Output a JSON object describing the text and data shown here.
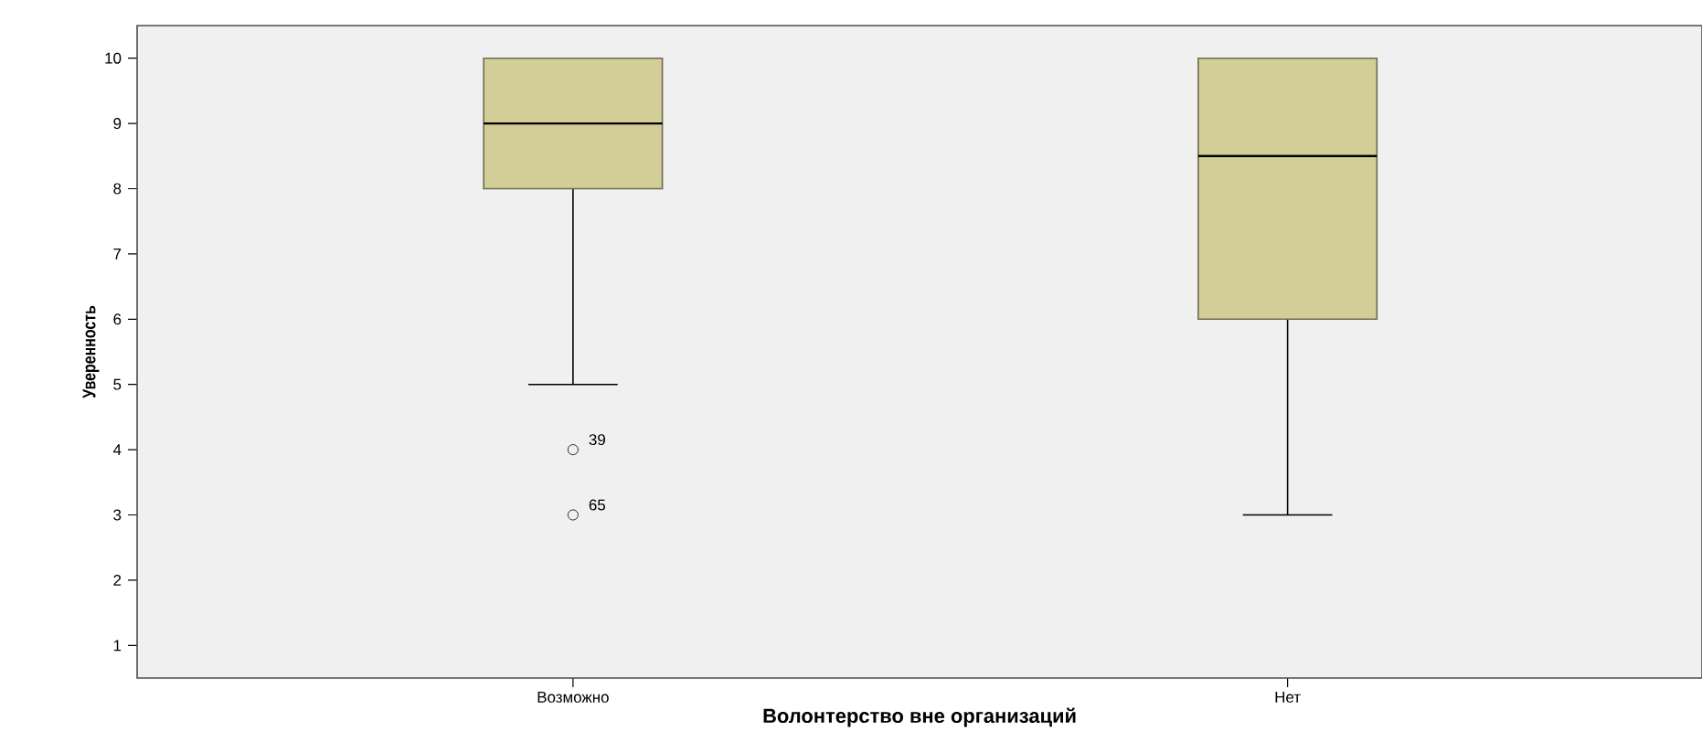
{
  "chart_data": {
    "type": "box",
    "xlabel": "Волонтерство вне организаций",
    "ylabel": "Уверенность",
    "categories": [
      "Возможно",
      "Нет"
    ],
    "boxes": [
      {
        "low": 5,
        "q1": 8,
        "median": 9,
        "q3": 10,
        "high": 10,
        "outliers": [
          4,
          3
        ]
      },
      {
        "low": 3,
        "q1": 6,
        "median": 8.5,
        "q3": 10,
        "high": 10
      }
    ],
    "color": "#d3ce97",
    "ylim": [
      0.5,
      10.5
    ],
    "yticks": [
      1,
      2,
      3,
      4,
      5,
      6,
      7,
      8,
      9,
      10
    ],
    "annotations": [
      "39",
      "65"
    ],
    "grid": false
  }
}
